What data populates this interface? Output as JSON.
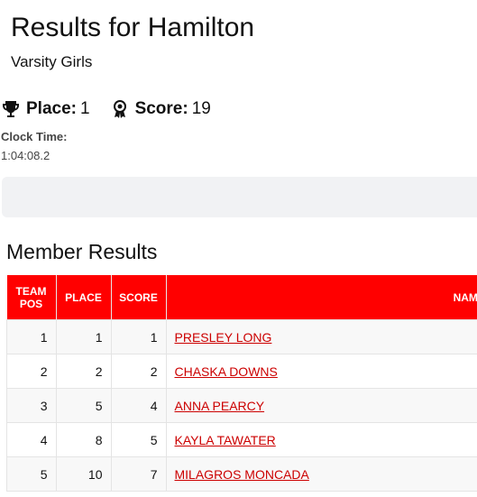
{
  "header": {
    "title": "Results for Hamilton",
    "subtitle": "Varsity Girls"
  },
  "summary": {
    "place_label": "Place:",
    "place": "1",
    "score_label": "Score:",
    "score": "19",
    "clock_label": "Clock Time:",
    "clock": "1:04:08.2"
  },
  "section_title": "Member Results",
  "table": {
    "columns": [
      "TEAM POS",
      "PLACE",
      "SCORE",
      "NAME"
    ],
    "rows": [
      [
        "1",
        "1",
        "1",
        "PRESLEY LONG"
      ],
      [
        "2",
        "2",
        "2",
        "CHASKA DOWNS"
      ],
      [
        "3",
        "5",
        "4",
        "ANNA PEARCY"
      ],
      [
        "4",
        "8",
        "5",
        "KAYLA TAWATER"
      ],
      [
        "5",
        "10",
        "7",
        "MILAGROS MONCADA"
      ]
    ]
  }
}
